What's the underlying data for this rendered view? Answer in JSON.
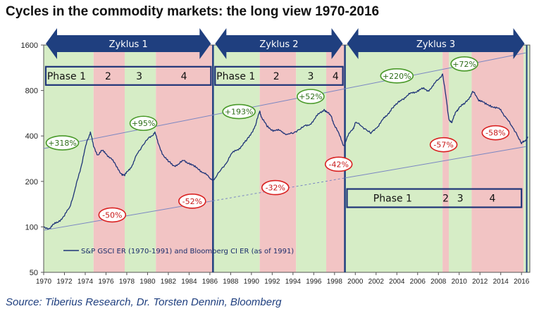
{
  "title": "Cycles in the commodity markets: the long view 1970-2016",
  "source": "Source: Tiberius Research, Dr. Torsten Dennin, Bloomberg",
  "colors": {
    "green": "#d6edc6",
    "red": "#f2c4c4",
    "line": "#1f3478",
    "arrow": "#1f3f7f",
    "good": "#4a9a2a",
    "bad": "#d92020"
  },
  "chart_data": {
    "type": "line",
    "title": "Cycles in the commodity markets: the long view 1970-2016",
    "xlim": [
      1970,
      2016.8
    ],
    "ylim": [
      50,
      1600
    ],
    "log_scale_y": true,
    "grid": false,
    "x_ticks": [
      "1970",
      "1972",
      "1974",
      "1976",
      "1978",
      "1980",
      "1982",
      "1984",
      "1986",
      "1988",
      "1990",
      "1992",
      "1994",
      "1996",
      "1998",
      "2000",
      "2002",
      "2004",
      "2006",
      "2008",
      "2010",
      "2012",
      "2014",
      "2016"
    ],
    "y_ticks": [
      "1600",
      "800",
      "400",
      "200",
      "100",
      "50"
    ],
    "legend": {
      "label": "S&P GSCI ER (1970-1991) and Bloomberg CI ER (as of 1991)",
      "placement": "bottom-left"
    },
    "series": [
      {
        "name": "S&P GSCI ER (1970-1991) and Bloomberg CI ER (as of 1991)",
        "points": [
          [
            1970,
            100
          ],
          [
            1970.6,
            98
          ],
          [
            1971,
            104
          ],
          [
            1971.5,
            110
          ],
          [
            1972,
            118
          ],
          [
            1972.5,
            135
          ],
          [
            1973,
            175
          ],
          [
            1973.3,
            210
          ],
          [
            1973.6,
            250
          ],
          [
            1973.9,
            310
          ],
          [
            1974.2,
            375
          ],
          [
            1974.5,
            425
          ],
          [
            1974.8,
            340
          ],
          [
            1975.2,
            300
          ],
          [
            1975.6,
            320
          ],
          [
            1976,
            305
          ],
          [
            1976.5,
            285
          ],
          [
            1977,
            250
          ],
          [
            1977.5,
            225
          ],
          [
            1977.8,
            218
          ],
          [
            1978.2,
            240
          ],
          [
            1978.6,
            260
          ],
          [
            1979,
            305
          ],
          [
            1979.5,
            345
          ],
          [
            1980,
            380
          ],
          [
            1980.4,
            400
          ],
          [
            1980.7,
            425
          ],
          [
            1981,
            360
          ],
          [
            1981.5,
            300
          ],
          [
            1982,
            270
          ],
          [
            1982.5,
            255
          ],
          [
            1983,
            260
          ],
          [
            1983.5,
            275
          ],
          [
            1984,
            265
          ],
          [
            1984.5,
            250
          ],
          [
            1985,
            240
          ],
          [
            1985.5,
            225
          ],
          [
            1986,
            210
          ],
          [
            1986.4,
            205
          ],
          [
            1987,
            235
          ],
          [
            1987.5,
            260
          ],
          [
            1988,
            300
          ],
          [
            1988.5,
            320
          ],
          [
            1989,
            340
          ],
          [
            1989.5,
            370
          ],
          [
            1990,
            420
          ],
          [
            1990.4,
            470
          ],
          [
            1990.8,
            585
          ],
          [
            1991,
            530
          ],
          [
            1991.5,
            460
          ],
          [
            1992,
            440
          ],
          [
            1992.5,
            435
          ],
          [
            1993,
            425
          ],
          [
            1993.5,
            410
          ],
          [
            1994,
            415
          ],
          [
            1994.5,
            440
          ],
          [
            1995,
            460
          ],
          [
            1995.5,
            470
          ],
          [
            1996,
            510
          ],
          [
            1996.5,
            560
          ],
          [
            1997,
            600
          ],
          [
            1997.3,
            570
          ],
          [
            1997.7,
            540
          ],
          [
            1998,
            470
          ],
          [
            1998.5,
            400
          ],
          [
            1998.9,
            345
          ],
          [
            1999.3,
            400
          ],
          [
            1999.8,
            450
          ],
          [
            2000,
            490
          ],
          [
            2000.5,
            470
          ],
          [
            2001,
            445
          ],
          [
            2001.5,
            415
          ],
          [
            2002,
            450
          ],
          [
            2002.5,
            500
          ],
          [
            2003,
            540
          ],
          [
            2003.5,
            610
          ],
          [
            2004,
            650
          ],
          [
            2004.5,
            700
          ],
          [
            2005,
            740
          ],
          [
            2005.5,
            770
          ],
          [
            2006,
            800
          ],
          [
            2006.5,
            820
          ],
          [
            2007,
            800
          ],
          [
            2007.5,
            860
          ],
          [
            2008,
            950
          ],
          [
            2008.4,
            1030
          ],
          [
            2008.7,
            750
          ],
          [
            2009,
            520
          ],
          [
            2009.3,
            490
          ],
          [
            2009.7,
            580
          ],
          [
            2010,
            620
          ],
          [
            2010.5,
            650
          ],
          [
            2011,
            720
          ],
          [
            2011.3,
            790
          ],
          [
            2011.8,
            700
          ],
          [
            2012,
            690
          ],
          [
            2012.5,
            650
          ],
          [
            2013,
            640
          ],
          [
            2013.5,
            610
          ],
          [
            2014,
            600
          ],
          [
            2014.5,
            530
          ],
          [
            2015,
            470
          ],
          [
            2015.5,
            420
          ],
          [
            2016,
            355
          ],
          [
            2016.3,
            370
          ],
          [
            2016.6,
            395
          ]
        ]
      }
    ],
    "cycles": [
      {
        "label": "Zyklus 1",
        "start": 1970,
        "end": 1986.3
      },
      {
        "label": "Zyklus 2",
        "start": 1986.3,
        "end": 1999
      },
      {
        "label": "Zyklus 3",
        "start": 1999,
        "end": 2016.5
      }
    ],
    "bands": [
      {
        "start": 1970,
        "end": 1974.8,
        "phase": "green"
      },
      {
        "start": 1974.8,
        "end": 1977.8,
        "phase": "red"
      },
      {
        "start": 1977.8,
        "end": 1980.8,
        "phase": "green"
      },
      {
        "start": 1980.8,
        "end": 1986.3,
        "phase": "red"
      },
      {
        "start": 1986.3,
        "end": 1990.8,
        "phase": "green"
      },
      {
        "start": 1990.8,
        "end": 1994.3,
        "phase": "red"
      },
      {
        "start": 1994.3,
        "end": 1997.2,
        "phase": "green"
      },
      {
        "start": 1997.2,
        "end": 1999,
        "phase": "red"
      },
      {
        "start": 1999,
        "end": 2008.4,
        "phase": "green"
      },
      {
        "start": 2008.4,
        "end": 2009,
        "phase": "red"
      },
      {
        "start": 2009,
        "end": 2011.2,
        "phase": "green"
      },
      {
        "start": 2011.2,
        "end": 2016.2,
        "phase": "red"
      },
      {
        "start": 2016.2,
        "end": 2016.8,
        "phase": "green"
      }
    ],
    "phase_boxes": [
      {
        "x0": 1970.2,
        "x1": 1986.1,
        "yval": 1000,
        "labels": [
          {
            "text": "Phase 1",
            "x": 1972.2
          },
          {
            "text": "2",
            "x": 1976.2
          },
          {
            "text": "3",
            "x": 1979.2
          },
          {
            "text": "4",
            "x": 1983.5
          }
        ]
      },
      {
        "x0": 1986.5,
        "x1": 1998.8,
        "yval": 1000,
        "labels": [
          {
            "text": "Phase 1",
            "x": 1988.5
          },
          {
            "text": "2",
            "x": 1992.4
          },
          {
            "text": "3",
            "x": 1995.7
          },
          {
            "text": "4",
            "x": 1998.1
          }
        ]
      },
      {
        "x0": 1999.2,
        "x1": 2016.0,
        "yval": 155,
        "labels": [
          {
            "text": "Phase 1",
            "x": 2003.6
          },
          {
            "text": "2",
            "x": 2008.7
          },
          {
            "text": "3",
            "x": 2010.1
          },
          {
            "text": "4",
            "x": 2013.2
          }
        ]
      }
    ],
    "trend_lines": [
      {
        "from": [
          1970,
          95
        ],
        "to": [
          2016.4,
          340
        ],
        "dashed_from": 1986.3,
        "dashed_to": 1999
      },
      {
        "from": [
          1970,
          330
        ],
        "to": [
          2016.4,
          1420
        ],
        "dashed_from": null,
        "dashed_to": null
      }
    ],
    "annotations": [
      {
        "text": "+318%",
        "x": 1971.8,
        "y": 360,
        "kind": "gain"
      },
      {
        "text": "-50%",
        "x": 1976.6,
        "y": 120,
        "kind": "loss"
      },
      {
        "text": "+95%",
        "x": 1979.6,
        "y": 485,
        "kind": "gain"
      },
      {
        "text": "-52%",
        "x": 1984.3,
        "y": 148,
        "kind": "loss"
      },
      {
        "text": "+193%",
        "x": 1988.8,
        "y": 580,
        "kind": "gain"
      },
      {
        "text": "-32%",
        "x": 1992.3,
        "y": 182,
        "kind": "loss"
      },
      {
        "text": "+52%",
        "x": 1995.7,
        "y": 730,
        "kind": "gain"
      },
      {
        "text": "-42%",
        "x": 1998.4,
        "y": 260,
        "kind": "loss"
      },
      {
        "text": "+220%",
        "x": 2004.0,
        "y": 1000,
        "kind": "gain"
      },
      {
        "text": "+72%",
        "x": 2010.5,
        "y": 1200,
        "kind": "gain"
      },
      {
        "text": "-57%",
        "x": 2008.5,
        "y": 350,
        "kind": "loss"
      },
      {
        "text": "-58%",
        "x": 2013.5,
        "y": 420,
        "kind": "loss"
      }
    ]
  }
}
